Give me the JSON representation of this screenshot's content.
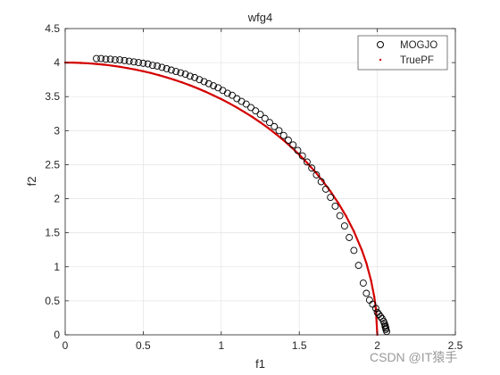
{
  "chart_data": {
    "type": "scatter",
    "title": "wfg4",
    "xlabel": "f1",
    "ylabel": "f2",
    "xlim": [
      0,
      2.5
    ],
    "ylim": [
      0,
      4.5
    ],
    "xticks": [
      0,
      0.5,
      1,
      1.5,
      2,
      2.5
    ],
    "xtick_labels": [
      "0",
      "0.5",
      "1",
      "1.5",
      "2",
      "2.5"
    ],
    "yticks": [
      0,
      0.5,
      1,
      1.5,
      2,
      2.5,
      3,
      3.5,
      4,
      4.5
    ],
    "ytick_labels": [
      "0",
      "0.5",
      "1",
      "1.5",
      "2",
      "2.5",
      "3",
      "3.5",
      "4",
      "4.5"
    ],
    "grid": true,
    "legend_position": "top-right",
    "series": [
      {
        "name": "MOGJO",
        "marker": "open-circle",
        "color": "#000000",
        "x": [
          0.2,
          0.23,
          0.26,
          0.29,
          0.32,
          0.35,
          0.38,
          0.41,
          0.44,
          0.47,
          0.5,
          0.53,
          0.56,
          0.59,
          0.62,
          0.65,
          0.68,
          0.71,
          0.74,
          0.77,
          0.8,
          0.83,
          0.86,
          0.89,
          0.92,
          0.95,
          0.98,
          1.01,
          1.04,
          1.07,
          1.1,
          1.13,
          1.16,
          1.19,
          1.22,
          1.25,
          1.28,
          1.31,
          1.34,
          1.37,
          1.4,
          1.43,
          1.46,
          1.49,
          1.52,
          1.55,
          1.58,
          1.61,
          1.64,
          1.67,
          1.7,
          1.73,
          1.76,
          1.79,
          1.82,
          1.85,
          1.88,
          1.91,
          1.93,
          1.95,
          1.97,
          1.99,
          2.0,
          2.01,
          2.02,
          2.03,
          2.04,
          2.045,
          2.05,
          2.05,
          2.055,
          2.055,
          2.06
        ],
        "y": [
          4.06,
          4.06,
          4.05,
          4.05,
          4.04,
          4.04,
          4.03,
          4.02,
          4.01,
          4.0,
          3.99,
          3.98,
          3.96,
          3.95,
          3.93,
          3.91,
          3.89,
          3.87,
          3.85,
          3.83,
          3.8,
          3.78,
          3.75,
          3.72,
          3.69,
          3.66,
          3.63,
          3.59,
          3.55,
          3.52,
          3.47,
          3.43,
          3.39,
          3.34,
          3.29,
          3.24,
          3.18,
          3.12,
          3.06,
          3.0,
          2.93,
          2.86,
          2.79,
          2.71,
          2.63,
          2.54,
          2.45,
          2.35,
          2.25,
          2.14,
          2.02,
          1.89,
          1.75,
          1.6,
          1.43,
          1.24,
          1.02,
          0.76,
          0.61,
          0.51,
          0.45,
          0.39,
          0.33,
          0.3,
          0.27,
          0.24,
          0.2,
          0.17,
          0.14,
          0.12,
          0.1,
          0.08,
          0.05
        ]
      },
      {
        "name": "TruePF",
        "marker": "dot",
        "color": "#d40000",
        "x": [
          0,
          0.05,
          0.1,
          0.15,
          0.2,
          0.25,
          0.3,
          0.35,
          0.4,
          0.45,
          0.5,
          0.55,
          0.6,
          0.65,
          0.7,
          0.75,
          0.8,
          0.85,
          0.9,
          0.95,
          1.0,
          1.05,
          1.1,
          1.15,
          1.2,
          1.25,
          1.3,
          1.35,
          1.4,
          1.45,
          1.5,
          1.55,
          1.6,
          1.65,
          1.7,
          1.75,
          1.8,
          1.85,
          1.9,
          1.93,
          1.96,
          1.98,
          1.99,
          2.0
        ],
        "y": [
          4.0,
          4.0,
          3.995,
          3.989,
          3.98,
          3.969,
          3.955,
          3.938,
          3.919,
          3.897,
          3.873,
          3.846,
          3.816,
          3.782,
          3.746,
          3.708,
          3.666,
          3.62,
          3.571,
          3.518,
          3.464,
          3.404,
          3.34,
          3.271,
          3.2,
          3.122,
          3.04,
          2.951,
          2.857,
          2.755,
          2.646,
          2.527,
          2.4,
          2.26,
          2.107,
          1.936,
          1.744,
          1.52,
          1.249,
          1.054,
          0.796,
          0.563,
          0.399,
          0.0
        ]
      }
    ]
  },
  "watermark": "CSDN @IT猿手"
}
